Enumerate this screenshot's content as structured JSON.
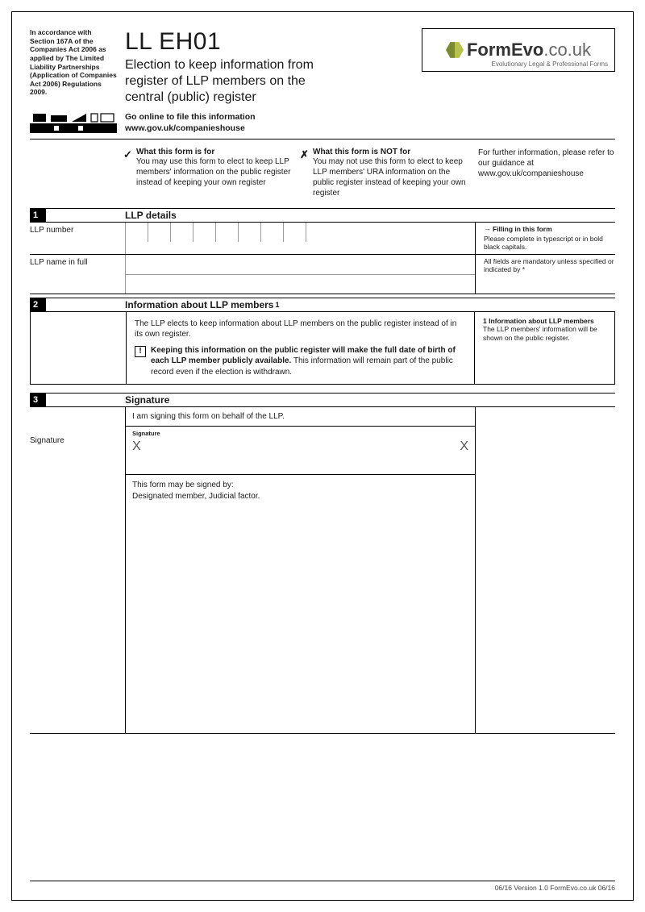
{
  "regulation_note": "In accordance with Section 167A of the Companies Act 2006 as applied by The Limited Liability Partnerships (Application of Companies Act 2006) Regulations 2009.",
  "form_code": "LL EH01",
  "form_title": "Election to keep information from register of LLP members on the central (public) register",
  "logo": {
    "brand": "FormEvo",
    "tld": ".co.uk",
    "tagline": "Evolutionary Legal & Professional Forms"
  },
  "online": {
    "line1": "Go online to file this information",
    "line2": "www.gov.uk/companieshouse"
  },
  "usage": {
    "for_head": "What this form is for",
    "for_body": "You may use this form to elect to keep LLP members' information on the public register instead of keeping your own register",
    "not_head": "What this form is NOT for",
    "not_body": "You may not use this form to elect to keep LLP members' URA information on the public register instead of keeping your own register",
    "further": "For further information, please refer to our guidance at www.gov.uk/companieshouse"
  },
  "sections": {
    "s1": {
      "num": "1",
      "title": "LLP details"
    },
    "s2": {
      "num": "2",
      "title": "Information about LLP members",
      "ref": "1"
    },
    "s3": {
      "num": "3",
      "title": "Signature"
    }
  },
  "fields": {
    "llp_number_label": "LLP number",
    "llp_number_cells": 8,
    "llp_name_label": "LLP name in full"
  },
  "side_fill": {
    "arrow": "→",
    "head": "Filling in this form",
    "body1": "Please complete in typescript or in bold black capitals.",
    "body2": "All fields are mandatory unless specified or indicated by *"
  },
  "info2": {
    "lead": "The LLP elects to keep information about LLP members on the public register instead of in its own register.",
    "warn_icon": "!",
    "warn_bold": "Keeping this information on the public register will make the full date of birth of each LLP member publicly available.",
    "warn_rest": " This information will remain part of the public record even if the election is withdrawn.",
    "side_ref": "1",
    "side_head": "Information about LLP members",
    "side_body": "The LLP members' information will be shown on the public register."
  },
  "signature": {
    "intro": "I am signing this form on behalf of the LLP.",
    "label": "Signature",
    "box_label": "Signature",
    "x": "X",
    "who_head": "This form may be signed by:",
    "who_body": "Designated member, Judicial factor."
  },
  "footer": "06/16 Version 1.0 FormEvo.co.uk 06/16"
}
